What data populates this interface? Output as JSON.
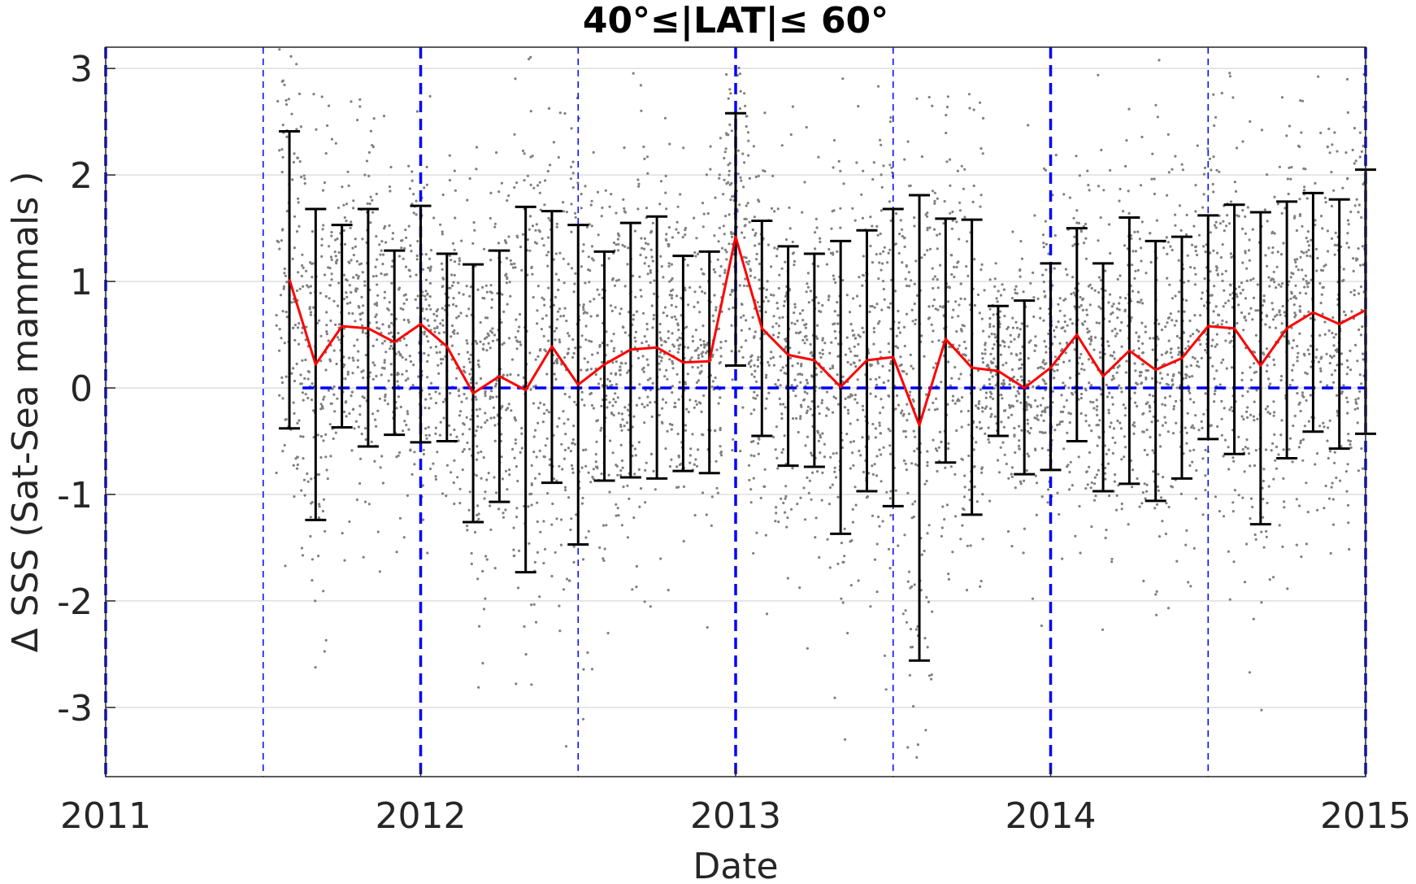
{
  "chart_data": {
    "type": "scatter",
    "title": "40°≤|LAT|≤ 60°",
    "xlabel": "Date",
    "ylabel": "Δ SSS (Sat-Sea mammals )",
    "xlim": [
      2011,
      2015
    ],
    "ylim": [
      -3.65,
      3.2
    ],
    "x_ticks": [
      2011,
      2012,
      2013,
      2014,
      2015
    ],
    "x_tick_labels": [
      "2011",
      "2012",
      "2013",
      "2014",
      "2015"
    ],
    "y_ticks": [
      -3,
      -2,
      -1,
      0,
      1,
      2,
      3
    ],
    "y_tick_labels": [
      "-3",
      "-2",
      "-1",
      "0",
      "1",
      "2",
      "3"
    ],
    "grid": true,
    "colors": {
      "mean_line": "#ff0000",
      "error_bars": "#000000",
      "scatter_points": "#808080",
      "reference_lines": "#0000ff"
    },
    "year_lines": [
      2011,
      2012,
      2013,
      2014,
      2015
    ],
    "half_year_lines": [
      2011.5,
      2012.5,
      2013.5,
      2014.5
    ],
    "zero_line": {
      "y": 0,
      "x_from": 2011.625,
      "x_to": 2015
    },
    "series": [
      {
        "kind": "monthly_mean_with_error_bars",
        "x": [
          "2011-08",
          "2011-09",
          "2011-10",
          "2011-11",
          "2011-12",
          "2012-01",
          "2012-02",
          "2012-03",
          "2012-04",
          "2012-05",
          "2012-06",
          "2012-07",
          "2012-08",
          "2012-09",
          "2012-10",
          "2012-11",
          "2012-12",
          "2013-01",
          "2013-02",
          "2013-03",
          "2013-04",
          "2013-05",
          "2013-06",
          "2013-07",
          "2013-08",
          "2013-09",
          "2013-10",
          "2013-11",
          "2013-12",
          "2014-01",
          "2014-02",
          "2014-03",
          "2014-04",
          "2014-05",
          "2014-06",
          "2014-07",
          "2014-08",
          "2014-09",
          "2014-10",
          "2014-11",
          "2014-12",
          "2015-01"
        ],
        "mean": [
          1.02,
          0.22,
          0.58,
          0.56,
          0.43,
          0.6,
          0.39,
          -0.05,
          0.11,
          -0.02,
          0.39,
          0.03,
          0.22,
          0.36,
          0.38,
          0.24,
          0.25,
          1.42,
          0.56,
          0.31,
          0.26,
          0.01,
          0.26,
          0.29,
          -0.35,
          0.46,
          0.19,
          0.16,
          0.0,
          0.19,
          0.5,
          0.11,
          0.35,
          0.17,
          0.28,
          0.58,
          0.56,
          0.21,
          0.56,
          0.71,
          0.6,
          0.73
        ],
        "upper": [
          2.41,
          1.68,
          1.53,
          1.68,
          1.29,
          1.71,
          1.26,
          1.16,
          1.29,
          1.7,
          1.66,
          1.53,
          1.28,
          1.55,
          1.61,
          1.24,
          1.28,
          2.58,
          1.57,
          1.33,
          1.26,
          1.38,
          1.48,
          1.68,
          1.81,
          1.59,
          1.58,
          0.77,
          0.82,
          1.17,
          1.5,
          1.17,
          1.6,
          1.38,
          1.42,
          1.62,
          1.72,
          1.65,
          1.75,
          1.83,
          1.77,
          2.05
        ],
        "lower": [
          -0.38,
          -1.24,
          -0.37,
          -0.55,
          -0.44,
          -0.51,
          -0.5,
          -1.26,
          -1.07,
          -1.73,
          -0.89,
          -1.47,
          -0.87,
          -0.84,
          -0.85,
          -0.78,
          -0.8,
          0.21,
          -0.45,
          -0.73,
          -0.74,
          -1.37,
          -0.97,
          -1.11,
          -2.56,
          -0.7,
          -1.19,
          -0.45,
          -0.81,
          -0.77,
          -0.5,
          -0.97,
          -0.9,
          -1.06,
          -0.85,
          -0.48,
          -0.62,
          -1.28,
          -0.66,
          -0.41,
          -0.57,
          -0.43
        ]
      }
    ]
  }
}
